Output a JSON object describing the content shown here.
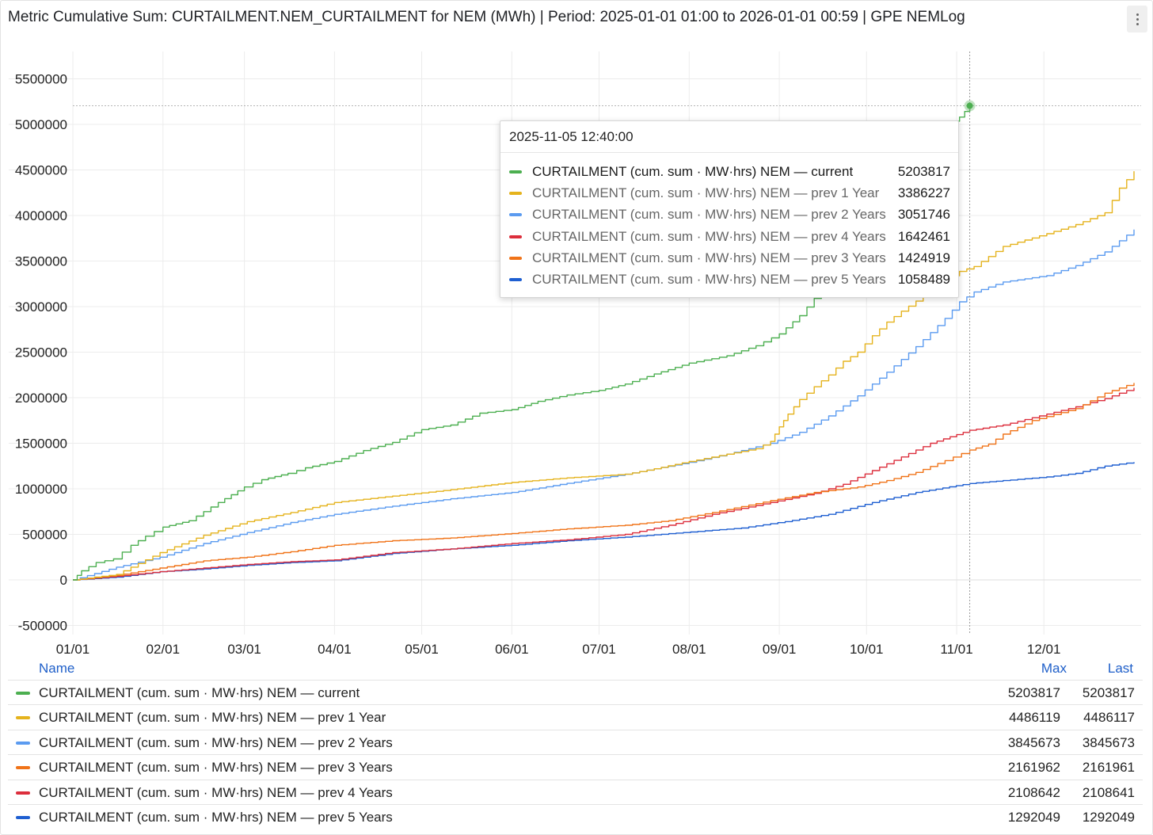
{
  "header": {
    "title": "Metric Cumulative Sum: CURTAILMENT.NEM_CURTAILMENT for NEM (MWh) | Period: 2025-01-01 01:00 to 2026-01-01 00:59 | GPE NEMLog",
    "menu_icon": "vertical-ellipsis-icon"
  },
  "chart_data": {
    "type": "line",
    "title": "Metric Cumulative Sum: CURTAILMENT.NEM_CURTAILMENT for NEM (MWh)",
    "xlabel": "",
    "ylabel": "",
    "x_ticks": [
      "01/01",
      "02/01",
      "03/01",
      "04/01",
      "05/01",
      "06/01",
      "07/01",
      "08/01",
      "09/01",
      "10/01",
      "11/01",
      "12/01"
    ],
    "y_ticks": [
      -500000,
      0,
      500000,
      1000000,
      1500000,
      2000000,
      2500000,
      3000000,
      3500000,
      4000000,
      4500000,
      5000000,
      5500000
    ],
    "ylim": [
      -600000,
      5800000
    ],
    "x_unit": "day_of_year",
    "xlim": [
      0,
      365
    ],
    "grid": true,
    "crosshair_day": 308.5,
    "series": [
      {
        "name": "CURTAILMENT (cum. sum · MW·hrs) NEM — current",
        "color": "#4caf50",
        "x": [
          0,
          3,
          8,
          14,
          20,
          25,
          31,
          40,
          50,
          59,
          65,
          74,
          80,
          90,
          100,
          110,
          120,
          130,
          140,
          151,
          160,
          170,
          181,
          190,
          200,
          212,
          225,
          235,
          243,
          250,
          255,
          260,
          265,
          270,
          275,
          280,
          285,
          290,
          295,
          300,
          305,
          308.5
        ],
        "y": [
          0,
          100000,
          190000,
          230000,
          380000,
          480000,
          580000,
          650000,
          850000,
          1020000,
          1100000,
          1170000,
          1230000,
          1300000,
          1420000,
          1510000,
          1650000,
          1700000,
          1830000,
          1870000,
          1960000,
          2030000,
          2080000,
          2150000,
          2260000,
          2380000,
          2460000,
          2570000,
          2700000,
          2900000,
          3090000,
          3300000,
          3550000,
          3800000,
          4000000,
          4250000,
          4450000,
          4650000,
          4850000,
          4990000,
          5080000,
          5203817
        ]
      },
      {
        "name": "CURTAILMENT (cum. sum · MW·hrs) NEM — prev 1 Year",
        "color": "#e5b31d",
        "x": [
          0,
          15,
          30,
          45,
          60,
          75,
          90,
          110,
          130,
          151,
          170,
          190,
          200,
          212,
          225,
          235,
          240,
          243,
          246,
          250,
          255,
          260,
          265,
          270,
          275,
          280,
          285,
          290,
          295,
          300,
          305,
          310,
          320,
          335,
          345,
          355,
          360,
          365
        ],
        "y": [
          0,
          60000,
          300000,
          490000,
          640000,
          740000,
          850000,
          920000,
          990000,
          1070000,
          1120000,
          1160000,
          1220000,
          1300000,
          1380000,
          1440000,
          1520000,
          1680000,
          1820000,
          1980000,
          2120000,
          2250000,
          2400000,
          2500000,
          2680000,
          2830000,
          2950000,
          3060000,
          3180000,
          3290000,
          3386227,
          3440000,
          3660000,
          3800000,
          3900000,
          4030000,
          4300000,
          4486117
        ]
      },
      {
        "name": "CURTAILMENT (cum. sum · MW·hrs) NEM — prev 2 Years",
        "color": "#5b9bf0",
        "x": [
          0,
          15,
          30,
          45,
          60,
          75,
          90,
          110,
          130,
          151,
          170,
          190,
          200,
          212,
          225,
          240,
          250,
          260,
          270,
          280,
          290,
          300,
          305,
          310,
          320,
          335,
          345,
          355,
          365
        ],
        "y": [
          0,
          140000,
          250000,
          400000,
          520000,
          630000,
          720000,
          810000,
          890000,
          960000,
          1060000,
          1160000,
          1220000,
          1290000,
          1380000,
          1500000,
          1620000,
          1800000,
          2020000,
          2280000,
          2560000,
          2870000,
          3051746,
          3160000,
          3270000,
          3340000,
          3450000,
          3600000,
          3845673
        ]
      },
      {
        "name": "CURTAILMENT (cum. sum · MW·hrs) NEM — prev 3 Years",
        "color": "#f07318",
        "x": [
          0,
          15,
          30,
          45,
          60,
          75,
          90,
          110,
          130,
          151,
          170,
          190,
          205,
          220,
          240,
          255,
          270,
          280,
          290,
          300,
          308.5,
          315,
          320,
          330,
          345,
          355,
          365
        ],
        "y": [
          0,
          50000,
          130000,
          210000,
          250000,
          310000,
          380000,
          430000,
          460000,
          510000,
          560000,
          600000,
          650000,
          740000,
          870000,
          960000,
          1020000,
          1090000,
          1180000,
          1310000,
          1424919,
          1490000,
          1600000,
          1750000,
          1880000,
          2050000,
          2161961
        ]
      },
      {
        "name": "CURTAILMENT (cum. sum · MW·hrs) NEM — prev 4 Years",
        "color": "#dc2e3c",
        "x": [
          0,
          15,
          30,
          45,
          60,
          75,
          90,
          110,
          130,
          151,
          170,
          190,
          205,
          220,
          240,
          255,
          265,
          275,
          285,
          295,
          308.5,
          320,
          330,
          345,
          355,
          365
        ],
        "y": [
          0,
          40000,
          90000,
          130000,
          170000,
          200000,
          220000,
          300000,
          340000,
          400000,
          440000,
          500000,
          600000,
          720000,
          850000,
          950000,
          1050000,
          1200000,
          1350000,
          1500000,
          1642461,
          1700000,
          1780000,
          1900000,
          1990000,
          2108641
        ]
      },
      {
        "name": "CURTAILMENT (cum. sum · MW·hrs) NEM — prev 5 Years",
        "color": "#1e5fd1",
        "x": [
          0,
          15,
          30,
          45,
          60,
          75,
          90,
          110,
          130,
          151,
          170,
          190,
          210,
          230,
          245,
          260,
          275,
          290,
          308.5,
          320,
          335,
          345,
          355,
          365
        ],
        "y": [
          0,
          30000,
          90000,
          120000,
          160000,
          190000,
          210000,
          290000,
          340000,
          380000,
          430000,
          470000,
          520000,
          570000,
          640000,
          720000,
          850000,
          960000,
          1058489,
          1090000,
          1130000,
          1170000,
          1250000,
          1292049
        ]
      }
    ]
  },
  "tooltip": {
    "timestamp": "2025-11-05 12:40:00",
    "rows": [
      {
        "name": "CURTAILMENT (cum. sum · MW·hrs) NEM — current",
        "value": "5203817",
        "color": "#4caf50"
      },
      {
        "name": "CURTAILMENT (cum. sum · MW·hrs) NEM — prev 1 Year",
        "value": "3386227",
        "color": "#e5b31d"
      },
      {
        "name": "CURTAILMENT (cum. sum · MW·hrs) NEM — prev 2 Years",
        "value": "3051746",
        "color": "#5b9bf0"
      },
      {
        "name": "CURTAILMENT (cum. sum · MW·hrs) NEM — prev 4 Years",
        "value": "1642461",
        "color": "#dc2e3c"
      },
      {
        "name": "CURTAILMENT (cum. sum · MW·hrs) NEM — prev 3 Years",
        "value": "1424919",
        "color": "#f07318"
      },
      {
        "name": "CURTAILMENT (cum. sum · MW·hrs) NEM — prev 5 Years",
        "value": "1058489",
        "color": "#1e5fd1"
      }
    ]
  },
  "legend": {
    "headers": {
      "name": "Name",
      "max": "Max",
      "last": "Last"
    },
    "rows": [
      {
        "name": "CURTAILMENT (cum. sum · MW·hrs) NEM — current",
        "max": "5203817",
        "last": "5203817",
        "color": "#4caf50"
      },
      {
        "name": "CURTAILMENT (cum. sum · MW·hrs) NEM — prev 1 Year",
        "max": "4486119",
        "last": "4486117",
        "color": "#e5b31d"
      },
      {
        "name": "CURTAILMENT (cum. sum · MW·hrs) NEM — prev 2 Years",
        "max": "3845673",
        "last": "3845673",
        "color": "#5b9bf0"
      },
      {
        "name": "CURTAILMENT (cum. sum · MW·hrs) NEM — prev 3 Years",
        "max": "2161962",
        "last": "2161961",
        "color": "#f07318"
      },
      {
        "name": "CURTAILMENT (cum. sum · MW·hrs) NEM — prev 4 Years",
        "max": "2108642",
        "last": "2108641",
        "color": "#dc2e3c"
      },
      {
        "name": "CURTAILMENT (cum. sum · MW·hrs) NEM — prev 5 Years",
        "max": "1292049",
        "last": "1292049",
        "color": "#1e5fd1"
      }
    ]
  }
}
